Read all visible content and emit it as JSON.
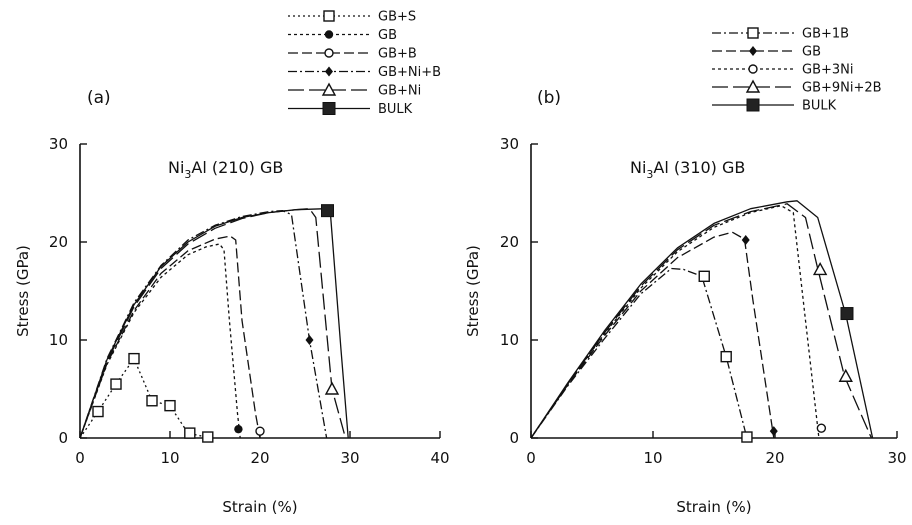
{
  "chart_data": [
    {
      "type": "line",
      "panel_label": "(a)",
      "title_parts": {
        "element": "Ni",
        "subscript": "3",
        "rest": "Al (210) GB"
      },
      "xlabel": "Strain (%)",
      "ylabel": "Stress (GPa)",
      "xlim": [
        0,
        40
      ],
      "ylim": [
        0,
        30
      ],
      "xticks": [
        0,
        10,
        20,
        30,
        40
      ],
      "yticks": [
        0,
        10,
        20,
        30
      ],
      "grid": false,
      "legend_position": "above-plot",
      "series": [
        {
          "name": "GB+S",
          "dash": "2,3",
          "marker": "square-open",
          "x": [
            0,
            2,
            4,
            6,
            8,
            10,
            12,
            14,
            14.5
          ],
          "y": [
            0,
            2.7,
            5.5,
            8.1,
            3.8,
            3.3,
            0.5,
            0.1,
            0
          ],
          "marker_points": [
            [
              2,
              2.7
            ],
            [
              4,
              5.5
            ],
            [
              6,
              8.1
            ],
            [
              8,
              3.8
            ],
            [
              10,
              3.3
            ],
            [
              12.2,
              0.5
            ],
            [
              14.2,
              0.1
            ]
          ]
        },
        {
          "name": "GB",
          "dash": "3,3",
          "marker": "circle-filled",
          "x": [
            0,
            3,
            6,
            9,
            12,
            14,
            15.5,
            16,
            16.6,
            17.5,
            17.8
          ],
          "y": [
            0,
            7.5,
            12.8,
            16.4,
            18.7,
            19.5,
            19.8,
            19.2,
            12,
            2.5,
            0
          ],
          "marker_points": [
            [
              17.6,
              0.9
            ]
          ]
        },
        {
          "name": "GB+B",
          "dash": "10,4",
          "marker": "circle-open",
          "x": [
            0,
            3,
            6,
            9,
            12,
            15,
            16.7,
            17.3,
            18,
            19.5,
            20
          ],
          "y": [
            0,
            7.6,
            13,
            16.8,
            19.1,
            20.3,
            20.6,
            20.2,
            12,
            2.5,
            0
          ],
          "marker_points": [
            [
              20,
              0.7
            ]
          ]
        },
        {
          "name": "GB+Ni+B",
          "dash": "9,3,2,3",
          "marker": "diamond-filled",
          "x": [
            0,
            3,
            6,
            9,
            12,
            15,
            18,
            21,
            22.5,
            23.5,
            25.5,
            27.4
          ],
          "y": [
            0,
            8.1,
            13.8,
            17.6,
            20.2,
            21.7,
            22.6,
            23.1,
            23.2,
            22.8,
            10,
            0
          ],
          "marker_points": [
            [
              25.5,
              10
            ]
          ]
        },
        {
          "name": "GB+Ni",
          "dash": "16,5",
          "marker": "triangle-open",
          "x": [
            0,
            3,
            6,
            9,
            12,
            15,
            18,
            21,
            24,
            25.5,
            26.2,
            28,
            29.5
          ],
          "y": [
            0,
            7.8,
            13.4,
            17.3,
            19.8,
            21.4,
            22.4,
            23.0,
            23.3,
            23.4,
            22.5,
            5,
            0
          ],
          "marker_points": [
            [
              28,
              5
            ]
          ]
        },
        {
          "name": "BULK",
          "dash": "none",
          "marker": "square-filled",
          "x": [
            0,
            3,
            6,
            9,
            12,
            15,
            18,
            21,
            24,
            27.3,
            27.8,
            29,
            29.8
          ],
          "y": [
            0,
            8.0,
            13.6,
            17.5,
            20.0,
            21.6,
            22.5,
            23.0,
            23.3,
            23.4,
            23.2,
            9,
            0
          ],
          "marker_points": [
            [
              27.5,
              23.2
            ]
          ]
        }
      ]
    },
    {
      "type": "line",
      "panel_label": "(b)",
      "title_parts": {
        "element": "Ni",
        "subscript": "3",
        "rest": "Al (310) GB"
      },
      "xlabel": "Strain (%)",
      "ylabel": "Stress (GPa)",
      "xlim": [
        0,
        30
      ],
      "ylim": [
        0,
        30
      ],
      "xticks": [
        0,
        10,
        20,
        30
      ],
      "yticks": [
        0,
        10,
        20,
        30
      ],
      "grid": false,
      "legend_position": "above-plot",
      "series": [
        {
          "name": "GB+1B",
          "dash": "9,3,2,3",
          "marker": "square-open",
          "x": [
            0,
            3,
            6,
            9,
            11.5,
            12.5,
            14,
            16,
            17.7
          ],
          "y": [
            0,
            5.3,
            10.1,
            14.7,
            17.3,
            17.2,
            16.5,
            8.3,
            0
          ],
          "marker_points": [
            [
              14.2,
              16.5
            ],
            [
              16,
              8.3
            ],
            [
              17.7,
              0.1
            ]
          ]
        },
        {
          "name": "GB",
          "dash": "10,4",
          "marker": "diamond-filled",
          "x": [
            0,
            3,
            6,
            9,
            12,
            15,
            16.5,
            17.5,
            18.2,
            19.9
          ],
          "y": [
            0,
            5.4,
            10.4,
            15.0,
            18.4,
            20.5,
            21.0,
            20.3,
            14,
            0
          ],
          "marker_points": [
            [
              17.6,
              20.2
            ],
            [
              19.9,
              0.7
            ]
          ]
        },
        {
          "name": "GB+3Ni",
          "dash": "3,3",
          "marker": "circle-open",
          "x": [
            0,
            3,
            6,
            9,
            12,
            15,
            18,
            20.5,
            21.5,
            22.5,
            23.6
          ],
          "y": [
            0,
            5.5,
            10.6,
            15.3,
            19.0,
            21.5,
            23.0,
            23.7,
            23.0,
            12,
            0
          ],
          "marker_points": [
            [
              23.8,
              1
            ]
          ]
        },
        {
          "name": "GB+9Ni+2B",
          "dash": "16,5",
          "marker": "triangle-open",
          "x": [
            0,
            3,
            6,
            9,
            12,
            15,
            18,
            21,
            22.5,
            23.5,
            25.7,
            27.9
          ],
          "y": [
            0,
            5.5,
            10.7,
            15.5,
            19.2,
            21.7,
            23.1,
            23.9,
            22.5,
            17.3,
            6.3,
            0
          ],
          "marker_points": [
            [
              23.7,
              17.2
            ],
            [
              25.8,
              6.3
            ]
          ]
        },
        {
          "name": "BULK",
          "dash": "none",
          "marker": "square-filled",
          "x": [
            0,
            3,
            6,
            9,
            12,
            15,
            18,
            21,
            21.8,
            23.5,
            25.8,
            28
          ],
          "y": [
            0,
            5.6,
            10.9,
            15.7,
            19.4,
            21.9,
            23.4,
            24.1,
            24.2,
            22.5,
            12.6,
            0
          ],
          "marker_points": [
            [
              25.9,
              12.7
            ]
          ]
        }
      ]
    }
  ]
}
